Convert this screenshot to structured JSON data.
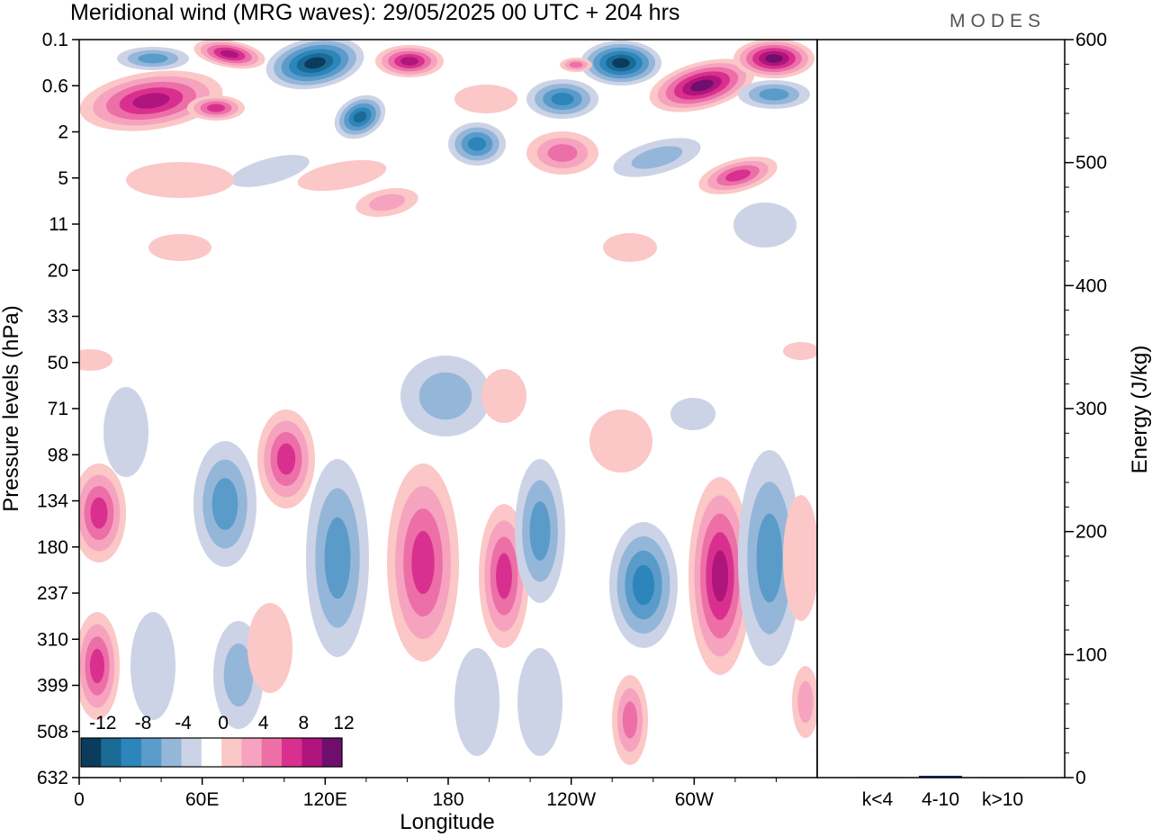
{
  "chart_data": {
    "type": "heatmap",
    "title": "Meridional wind (MRG waves):  29/05/2025  00 UTC  + 204 hrs",
    "logo": "MODES",
    "xlabel": "Longitude",
    "ylabel": "Pressure levels (hPa)",
    "y2label": "Energy (J/kg)",
    "x_ticks": [
      "0",
      "60E",
      "120E",
      "180",
      "120W",
      "60W"
    ],
    "x_tick_degrees": [
      0,
      60,
      120,
      180,
      240,
      300
    ],
    "xlim": [
      0,
      360
    ],
    "y_ticks": [
      "0.1",
      "0.6",
      "2",
      "5",
      "11",
      "20",
      "33",
      "50",
      "71",
      "98",
      "134",
      "180",
      "237",
      "310",
      "399",
      "508",
      "632"
    ],
    "y2_ticks": [
      "0",
      "100",
      "200",
      "300",
      "400",
      "500",
      "600"
    ],
    "y2lim": [
      0,
      600
    ],
    "energy_categories": [
      "k<4",
      "4-10",
      "k>10"
    ],
    "energy_values": [
      0.4,
      1.5,
      0.3
    ],
    "colorbar_labels": [
      "-12",
      "-8",
      "-4",
      "0",
      "4",
      "8",
      "12"
    ],
    "colorbar_levels": [
      -14,
      -12,
      -10,
      -8,
      -6,
      -4,
      -2,
      2,
      4,
      6,
      8,
      10,
      12,
      14
    ],
    "colorbar_colors": [
      "#0b3c5d",
      "#1b6a96",
      "#2d86bb",
      "#5a9bc9",
      "#94b6d9",
      "#ccd3e6",
      "#ffffff",
      "#fbc7c7",
      "#f6a3bf",
      "#ec6fa7",
      "#d9308f",
      "#b0157d",
      "#700e6e"
    ]
  }
}
